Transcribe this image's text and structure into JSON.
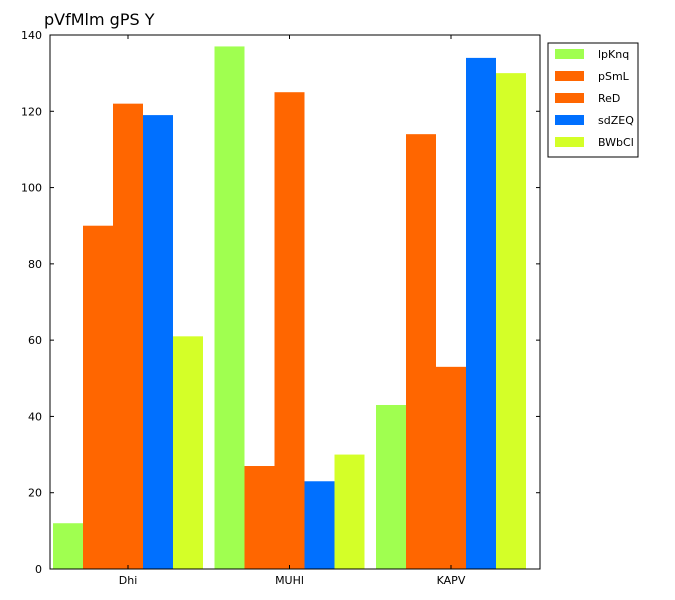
{
  "chart_data": {
    "type": "bar",
    "title": "pVfMlm gPS Y",
    "xlabel": "",
    "ylabel": "",
    "categories": [
      "Dhi",
      "MUHl",
      "KAPV"
    ],
    "ylim": [
      0,
      140
    ],
    "yticks": [
      0,
      20,
      40,
      60,
      80,
      100,
      120,
      140
    ],
    "grid": false,
    "legend_position": "top-right",
    "series": [
      {
        "name": "lpKnq",
        "color": "#a0ff50",
        "values": [
          12,
          137,
          43
        ]
      },
      {
        "name": "pSmL",
        "color": "#ff6600",
        "values": [
          90,
          27,
          114
        ]
      },
      {
        "name": "ReD",
        "color": "#ff6600",
        "values": [
          122,
          125,
          53
        ]
      },
      {
        "name": "sdZEQ",
        "color": "#0070ff",
        "values": [
          119,
          23,
          134
        ]
      },
      {
        "name": "BWbCl",
        "color": "#d4ff28",
        "values": [
          61,
          30,
          130
        ]
      }
    ]
  }
}
